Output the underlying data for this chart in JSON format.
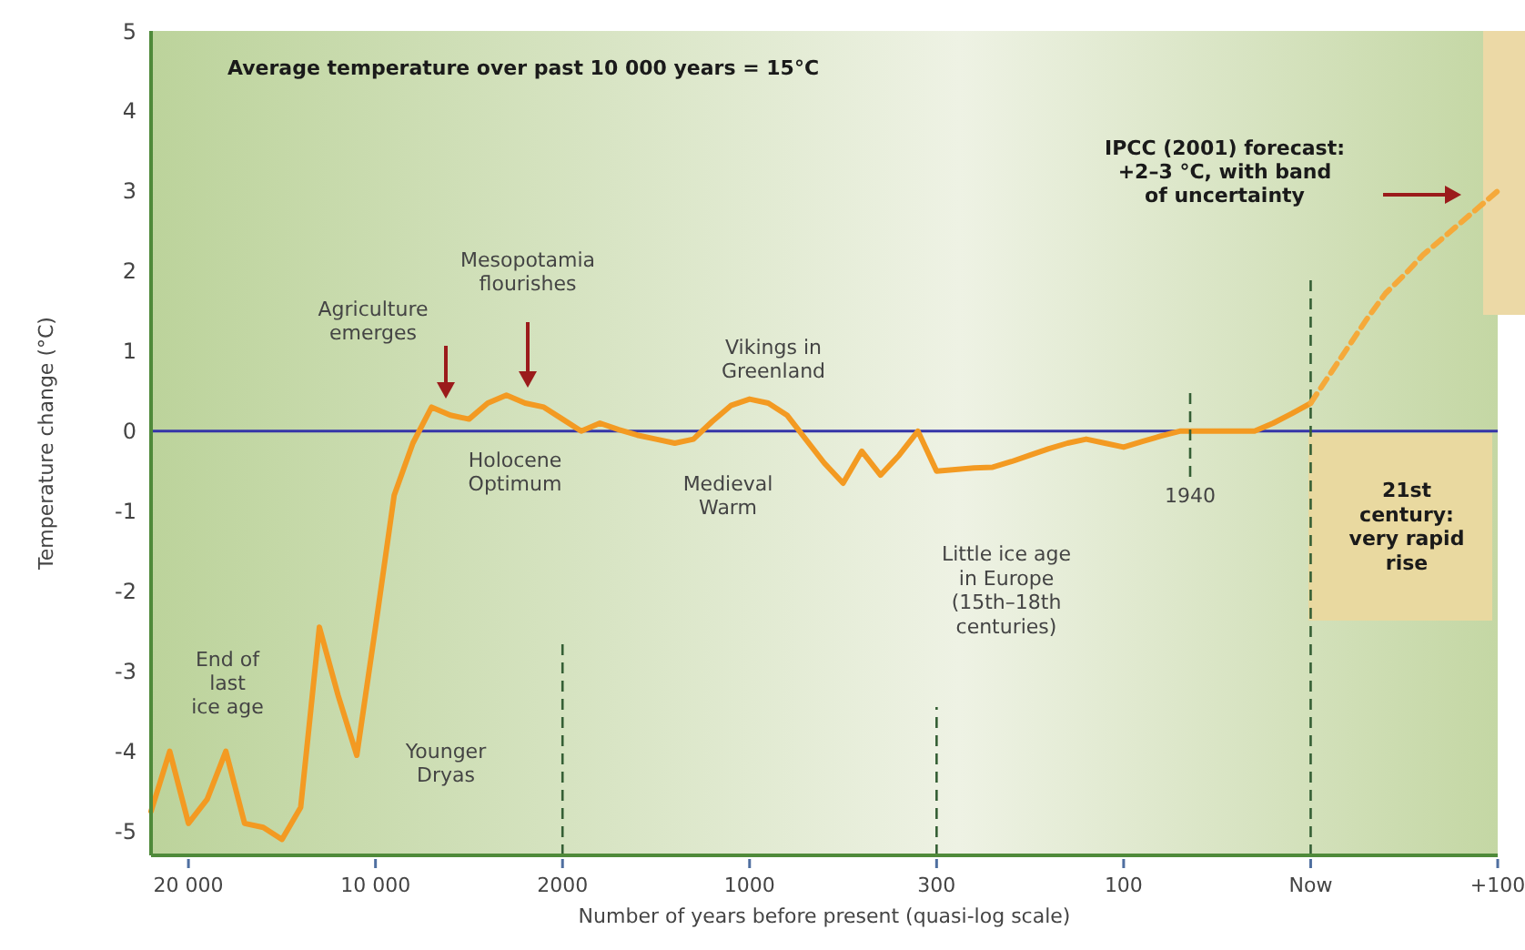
{
  "chart_data": {
    "type": "line",
    "xlabel": "Number of years before present (quasi-log scale)",
    "ylabel": "Temperature change (°C)",
    "categories": [
      null,
      null,
      "20 000",
      null,
      null,
      null,
      null,
      null,
      null,
      null,
      null,
      null,
      "10 000",
      null,
      null,
      null,
      null,
      null,
      null,
      null,
      null,
      null,
      "2000",
      null,
      null,
      null,
      null,
      null,
      null,
      null,
      null,
      null,
      "1000",
      null,
      null,
      null,
      null,
      null,
      null,
      null,
      null,
      null,
      "300",
      null,
      null,
      null,
      null,
      null,
      null,
      null,
      null,
      null,
      "100",
      null,
      null,
      null,
      null,
      null,
      null,
      null,
      null,
      null,
      "Now",
      null,
      null,
      null,
      null,
      null,
      null,
      null,
      null,
      null,
      "+100"
    ],
    "ylim": [
      -5.3,
      5
    ],
    "yticks": [
      -5,
      -4,
      -3,
      -2,
      -1,
      0,
      1,
      2,
      3,
      4,
      5
    ],
    "grid": false,
    "series": [
      {
        "color": "#f39a22",
        "values": [
          -4.75,
          -4.0,
          -4.9,
          -4.6,
          -4.0,
          -4.9,
          -4.95,
          -5.1,
          -4.7,
          -2.45,
          -3.3,
          -4.05,
          -2.45,
          -0.8,
          -0.15,
          0.3,
          0.2,
          0.15,
          0.35,
          0.45,
          0.35,
          0.3,
          0.15,
          0,
          0.1,
          0.02,
          -0.05,
          -0.1,
          -0.15,
          -0.1,
          0.12,
          0.32,
          0.4,
          0.35,
          0.2,
          -0.1,
          -0.4,
          -0.65,
          -0.25,
          -0.55,
          -0.3,
          0,
          -0.5,
          -0.48,
          -0.46,
          -0.45,
          -0.38,
          -0.3,
          -0.22,
          -0.15,
          -0.1,
          -0.15,
          -0.2,
          -0.13,
          -0.06,
          0,
          0,
          0,
          0,
          0,
          0.1,
          0.22,
          0.35,
          null,
          null,
          null,
          null,
          null,
          null,
          null,
          null,
          null,
          null
        ]
      },
      {
        "color": "#f5a93a",
        "line_style": "dashed",
        "values": [
          null,
          null,
          null,
          null,
          null,
          null,
          null,
          null,
          null,
          null,
          null,
          null,
          null,
          null,
          null,
          null,
          null,
          null,
          null,
          null,
          null,
          null,
          null,
          null,
          null,
          null,
          null,
          null,
          null,
          null,
          null,
          null,
          null,
          null,
          null,
          null,
          null,
          null,
          null,
          null,
          null,
          null,
          null,
          null,
          null,
          null,
          null,
          null,
          null,
          null,
          null,
          null,
          null,
          null,
          null,
          null,
          null,
          null,
          null,
          null,
          null,
          null,
          0.35,
          0.7,
          1.05,
          1.4,
          1.72,
          1.95,
          2.2,
          2.4,
          2.6,
          2.8,
          3.0
        ]
      }
    ],
    "ref_lines": [
      {
        "axis": "y",
        "value": 0,
        "color": "#3535a8",
        "line_style": "solid"
      },
      {
        "axis": "x",
        "value": "2000",
        "color": "#355f35",
        "line_style": "dashed"
      },
      {
        "axis": "x",
        "value": "300",
        "color": "#355f35",
        "line_style": "dashed"
      },
      {
        "axis": "x",
        "value": "Now",
        "color": "#355f35",
        "line_style": "dashed"
      }
    ],
    "annotations": [
      "Average temperature over past 10 000 years = 15°C",
      "Agriculture\nemerges",
      "Mesopotamia\nflourishes",
      "End of\nlast\nice age",
      "Younger\nDryas",
      "Holocene\nOptimum",
      "Medieval\nWarm",
      "Vikings in\nGreenland",
      "Little ice age\nin Europe\n(15th–18th\ncenturies)",
      "IPCC (2001) forecast:\n+2–3 °C, with band\nof uncertainty",
      "21st\ncentury:\nvery rapid\nrise",
      "1940"
    ]
  }
}
